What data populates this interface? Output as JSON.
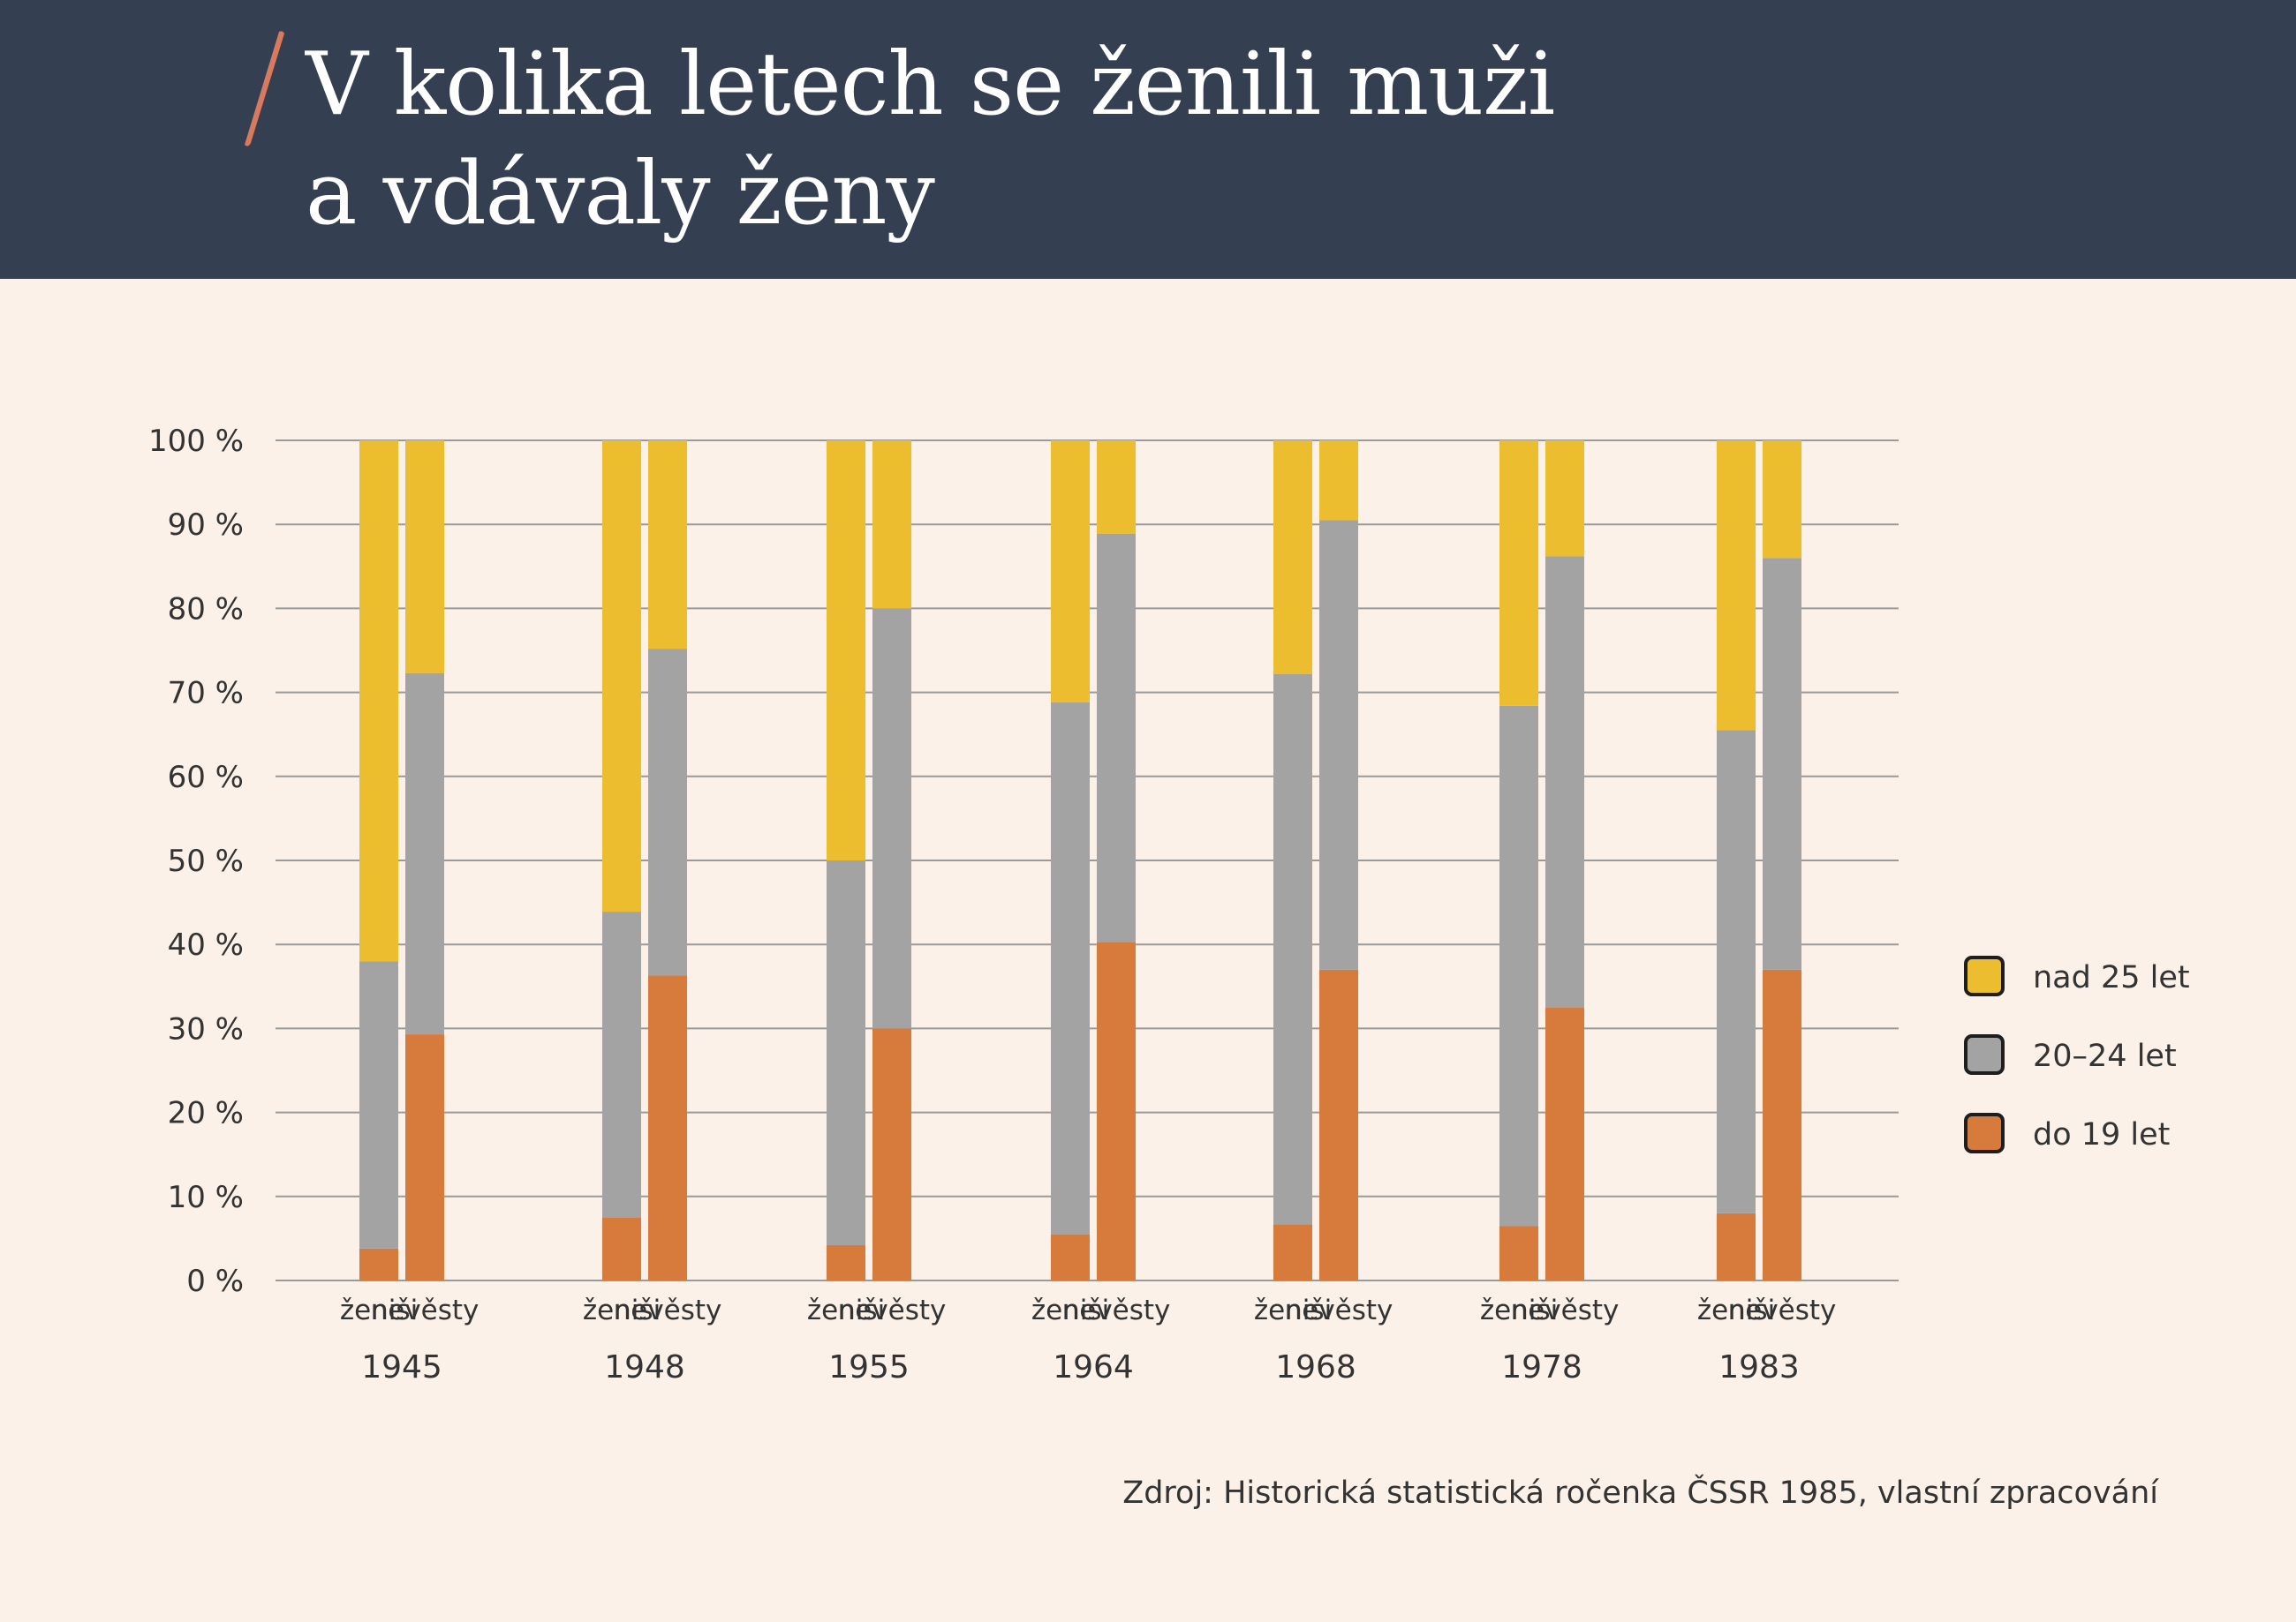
{
  "header": {
    "title_line1": "V kolika letech se ženili muži",
    "title_line2": "a vdávaly ženy"
  },
  "source": "Zdroj: Historická statistická ročenka ČSSR 1985, vlastní zpracování",
  "colors": {
    "header_bg": "#343f52",
    "page_bg": "#fbf1e8",
    "accent_slash": "#d77a5e",
    "over25": "#ecbd2f",
    "age20_24": "#a3a3a3",
    "under19": "#d67b3c",
    "grid": "#9a9a9a"
  },
  "chart_data": {
    "type": "bar",
    "stacked": true,
    "normalized": true,
    "ylim": [
      0,
      100
    ],
    "yticks": [
      0,
      10,
      20,
      30,
      40,
      50,
      60,
      70,
      80,
      90,
      100
    ],
    "ytick_suffix": " %",
    "grid": true,
    "legend_position": "right",
    "bar_labels": [
      "ženiši",
      "nevěsty"
    ],
    "groups": [
      "1945",
      "1948",
      "1955",
      "1964",
      "1968",
      "1978",
      "1983"
    ],
    "series": [
      {
        "name": "do 19 let",
        "color": "#d67b3c",
        "zenisi": [
          3.8,
          7.5,
          4.2,
          5.5,
          6.7,
          6.5,
          8.0
        ],
        "nevesty": [
          29.3,
          36.3,
          30.0,
          40.3,
          37.0,
          32.5,
          37.0
        ]
      },
      {
        "name": "20–24 let",
        "color": "#a3a3a3",
        "zenisi": [
          34.2,
          36.4,
          45.8,
          63.3,
          65.5,
          61.9,
          57.5
        ],
        "nevesty": [
          43.0,
          38.9,
          50.0,
          48.6,
          53.5,
          53.7,
          49.0
        ]
      },
      {
        "name": "nad 25 let",
        "color": "#ecbd2f",
        "zenisi": [
          62.0,
          56.1,
          50.0,
          31.2,
          27.8,
          31.6,
          34.5
        ],
        "nevesty": [
          27.7,
          24.8,
          20.0,
          11.1,
          9.5,
          13.8,
          14.0
        ]
      }
    ],
    "legend_order": [
      "nad 25 let",
      "20–24 let",
      "do 19 let"
    ]
  }
}
